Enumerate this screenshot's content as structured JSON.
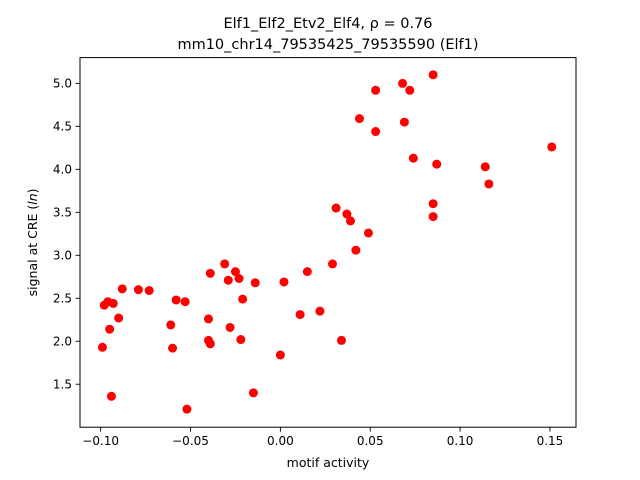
{
  "chart_data": {
    "type": "scatter",
    "title_line1": "Elf1_Elf2_Etv2_Elf4, ρ = 0.76",
    "title_line2": "mm10_chr14_79535425_79535590 (Elf1)",
    "xlabel": "motif activity",
    "ylabel_prefix": "signal at CRE (",
    "ylabel_italic": "ln",
    "ylabel_suffix": ")",
    "xlim": [
      -0.1115,
      0.1645
    ],
    "ylim": [
      1.0,
      5.3
    ],
    "xticks": [
      -0.1,
      -0.05,
      0.0,
      0.05,
      0.1,
      0.15
    ],
    "xtick_labels": [
      "−0.10",
      "−0.05",
      "0.00",
      "0.05",
      "0.10",
      "0.15"
    ],
    "yticks": [
      1.5,
      2.0,
      2.5,
      3.0,
      3.5,
      4.0,
      4.5,
      5.0
    ],
    "ytick_labels": [
      "1.5",
      "2.0",
      "2.5",
      "3.0",
      "3.5",
      "4.0",
      "4.5",
      "5.0"
    ],
    "grid": false,
    "marker_color": "#ff0000",
    "points": [
      {
        "x": -0.099,
        "y": 1.93
      },
      {
        "x": -0.098,
        "y": 2.42
      },
      {
        "x": -0.096,
        "y": 2.46
      },
      {
        "x": -0.095,
        "y": 2.14
      },
      {
        "x": -0.094,
        "y": 1.36
      },
      {
        "x": -0.093,
        "y": 2.44
      },
      {
        "x": -0.09,
        "y": 2.27
      },
      {
        "x": -0.088,
        "y": 2.61
      },
      {
        "x": -0.079,
        "y": 2.6
      },
      {
        "x": -0.073,
        "y": 2.59
      },
      {
        "x": -0.061,
        "y": 2.19
      },
      {
        "x": -0.06,
        "y": 1.92
      },
      {
        "x": -0.058,
        "y": 2.48
      },
      {
        "x": -0.053,
        "y": 2.46
      },
      {
        "x": -0.052,
        "y": 1.21
      },
      {
        "x": -0.04,
        "y": 2.01
      },
      {
        "x": -0.04,
        "y": 2.26
      },
      {
        "x": -0.039,
        "y": 2.79
      },
      {
        "x": -0.039,
        "y": 1.97
      },
      {
        "x": -0.031,
        "y": 2.9
      },
      {
        "x": -0.029,
        "y": 2.71
      },
      {
        "x": -0.028,
        "y": 2.16
      },
      {
        "x": -0.025,
        "y": 2.81
      },
      {
        "x": -0.023,
        "y": 2.73
      },
      {
        "x": -0.022,
        "y": 2.02
      },
      {
        "x": -0.021,
        "y": 2.49
      },
      {
        "x": -0.015,
        "y": 1.4
      },
      {
        "x": -0.014,
        "y": 2.68
      },
      {
        "x": 0.0,
        "y": 1.84
      },
      {
        "x": 0.002,
        "y": 2.69
      },
      {
        "x": 0.011,
        "y": 2.31
      },
      {
        "x": 0.015,
        "y": 2.81
      },
      {
        "x": 0.022,
        "y": 2.35
      },
      {
        "x": 0.029,
        "y": 2.9
      },
      {
        "x": 0.031,
        "y": 3.55
      },
      {
        "x": 0.034,
        "y": 2.01
      },
      {
        "x": 0.037,
        "y": 3.48
      },
      {
        "x": 0.039,
        "y": 3.4
      },
      {
        "x": 0.042,
        "y": 3.06
      },
      {
        "x": 0.044,
        "y": 4.59
      },
      {
        "x": 0.049,
        "y": 3.26
      },
      {
        "x": 0.053,
        "y": 4.92
      },
      {
        "x": 0.053,
        "y": 4.44
      },
      {
        "x": 0.068,
        "y": 5.0
      },
      {
        "x": 0.069,
        "y": 4.55
      },
      {
        "x": 0.072,
        "y": 4.92
      },
      {
        "x": 0.074,
        "y": 4.13
      },
      {
        "x": 0.085,
        "y": 3.6
      },
      {
        "x": 0.085,
        "y": 3.45
      },
      {
        "x": 0.085,
        "y": 5.1
      },
      {
        "x": 0.087,
        "y": 4.06
      },
      {
        "x": 0.114,
        "y": 4.03
      },
      {
        "x": 0.116,
        "y": 3.83
      },
      {
        "x": 0.151,
        "y": 4.26
      }
    ]
  }
}
